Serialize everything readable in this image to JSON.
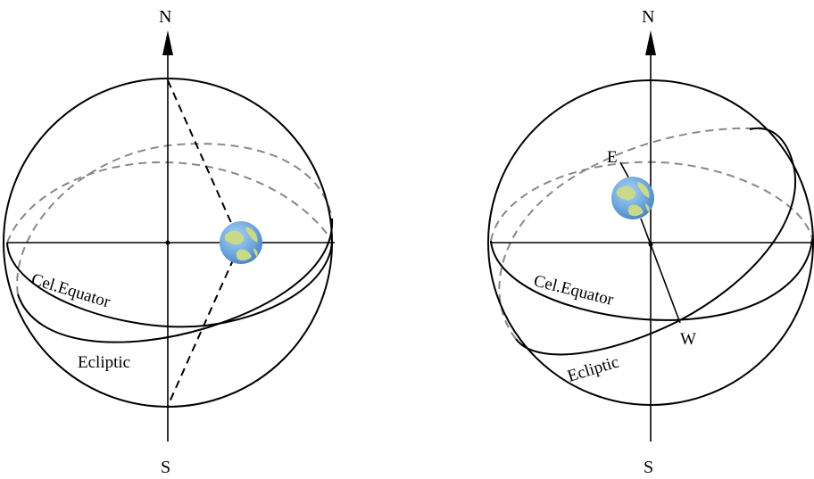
{
  "left_panel": {
    "north_label": "N",
    "south_label": "S",
    "celestial_equator_label": "Cel.Equator",
    "ecliptic_label": "Ecliptic",
    "earth_icon": "earth-globe-icon"
  },
  "right_panel": {
    "north_label": "N",
    "south_label": "S",
    "celestial_equator_label": "Cel.Equator",
    "ecliptic_label": "Ecliptic",
    "east_label": "E",
    "west_label": "W",
    "earth_icon": "earth-globe-icon"
  },
  "colors": {
    "line": "#000000",
    "hidden_orbit": "#888888",
    "ocean": "#6fa8dc",
    "land": "#c9d98a"
  }
}
